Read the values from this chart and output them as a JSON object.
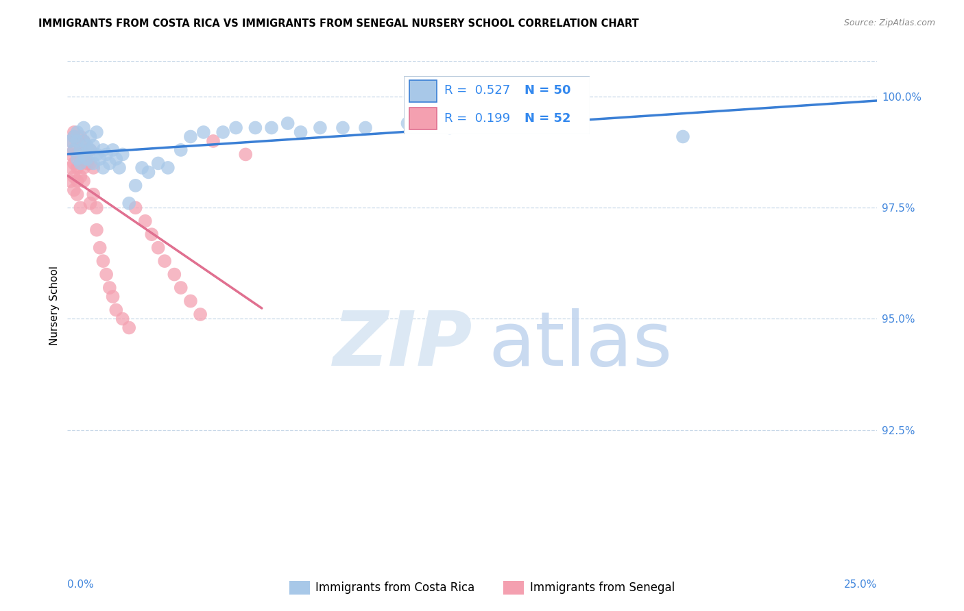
{
  "title": "IMMIGRANTS FROM COSTA RICA VS IMMIGRANTS FROM SENEGAL NURSERY SCHOOL CORRELATION CHART",
  "source": "Source: ZipAtlas.com",
  "ylabel": "Nursery School",
  "ytick_values": [
    0.925,
    0.95,
    0.975,
    1.0
  ],
  "ytick_labels": [
    "92.5%",
    "95.0%",
    "97.5%",
    "100.0%"
  ],
  "xlim": [
    0.0,
    0.25
  ],
  "ylim": [
    0.898,
    1.008
  ],
  "legend_r1": "R = 0.527",
  "legend_n1": "N = 50",
  "legend_r2": "R = 0.199",
  "legend_n2": "N = 52",
  "costa_rica_color": "#a8c8e8",
  "senegal_color": "#f4a0b0",
  "costa_rica_line_color": "#3a7fd5",
  "senegal_line_color": "#e07090",
  "watermark_zip": "ZIP",
  "watermark_atlas": "atlas",
  "costa_rica_x": [
    0.001,
    0.002,
    0.002,
    0.003,
    0.003,
    0.003,
    0.004,
    0.004,
    0.005,
    0.005,
    0.005,
    0.006,
    0.006,
    0.007,
    0.007,
    0.008,
    0.008,
    0.009,
    0.009,
    0.01,
    0.011,
    0.011,
    0.012,
    0.013,
    0.014,
    0.015,
    0.016,
    0.017,
    0.019,
    0.021,
    0.023,
    0.025,
    0.028,
    0.031,
    0.035,
    0.038,
    0.042,
    0.048,
    0.052,
    0.058,
    0.063,
    0.068,
    0.072,
    0.078,
    0.085,
    0.092,
    0.105,
    0.118,
    0.138,
    0.19
  ],
  "costa_rica_y": [
    0.99,
    0.988,
    0.991,
    0.986,
    0.99,
    0.992,
    0.988,
    0.985,
    0.99,
    0.987,
    0.993,
    0.989,
    0.986,
    0.991,
    0.988,
    0.985,
    0.989,
    0.987,
    0.992,
    0.986,
    0.988,
    0.984,
    0.987,
    0.985,
    0.988,
    0.986,
    0.984,
    0.987,
    0.976,
    0.98,
    0.984,
    0.983,
    0.985,
    0.984,
    0.988,
    0.991,
    0.992,
    0.992,
    0.993,
    0.993,
    0.993,
    0.994,
    0.992,
    0.993,
    0.993,
    0.993,
    0.994,
    0.993,
    0.994,
    0.991
  ],
  "senegal_x": [
    0.001,
    0.001,
    0.001,
    0.001,
    0.002,
    0.002,
    0.002,
    0.002,
    0.002,
    0.002,
    0.003,
    0.003,
    0.003,
    0.003,
    0.003,
    0.004,
    0.004,
    0.004,
    0.004,
    0.004,
    0.005,
    0.005,
    0.005,
    0.005,
    0.006,
    0.006,
    0.007,
    0.007,
    0.007,
    0.008,
    0.008,
    0.009,
    0.009,
    0.01,
    0.011,
    0.012,
    0.013,
    0.014,
    0.015,
    0.017,
    0.019,
    0.021,
    0.024,
    0.026,
    0.028,
    0.03,
    0.033,
    0.035,
    0.038,
    0.041,
    0.045,
    0.055
  ],
  "senegal_y": [
    0.99,
    0.987,
    0.984,
    0.981,
    0.991,
    0.988,
    0.985,
    0.982,
    0.979,
    0.992,
    0.99,
    0.987,
    0.984,
    0.981,
    0.978,
    0.991,
    0.988,
    0.985,
    0.982,
    0.975,
    0.99,
    0.987,
    0.984,
    0.981,
    0.988,
    0.985,
    0.988,
    0.985,
    0.976,
    0.984,
    0.978,
    0.975,
    0.97,
    0.966,
    0.963,
    0.96,
    0.957,
    0.955,
    0.952,
    0.95,
    0.948,
    0.975,
    0.972,
    0.969,
    0.966,
    0.963,
    0.96,
    0.957,
    0.954,
    0.951,
    0.99,
    0.987
  ]
}
